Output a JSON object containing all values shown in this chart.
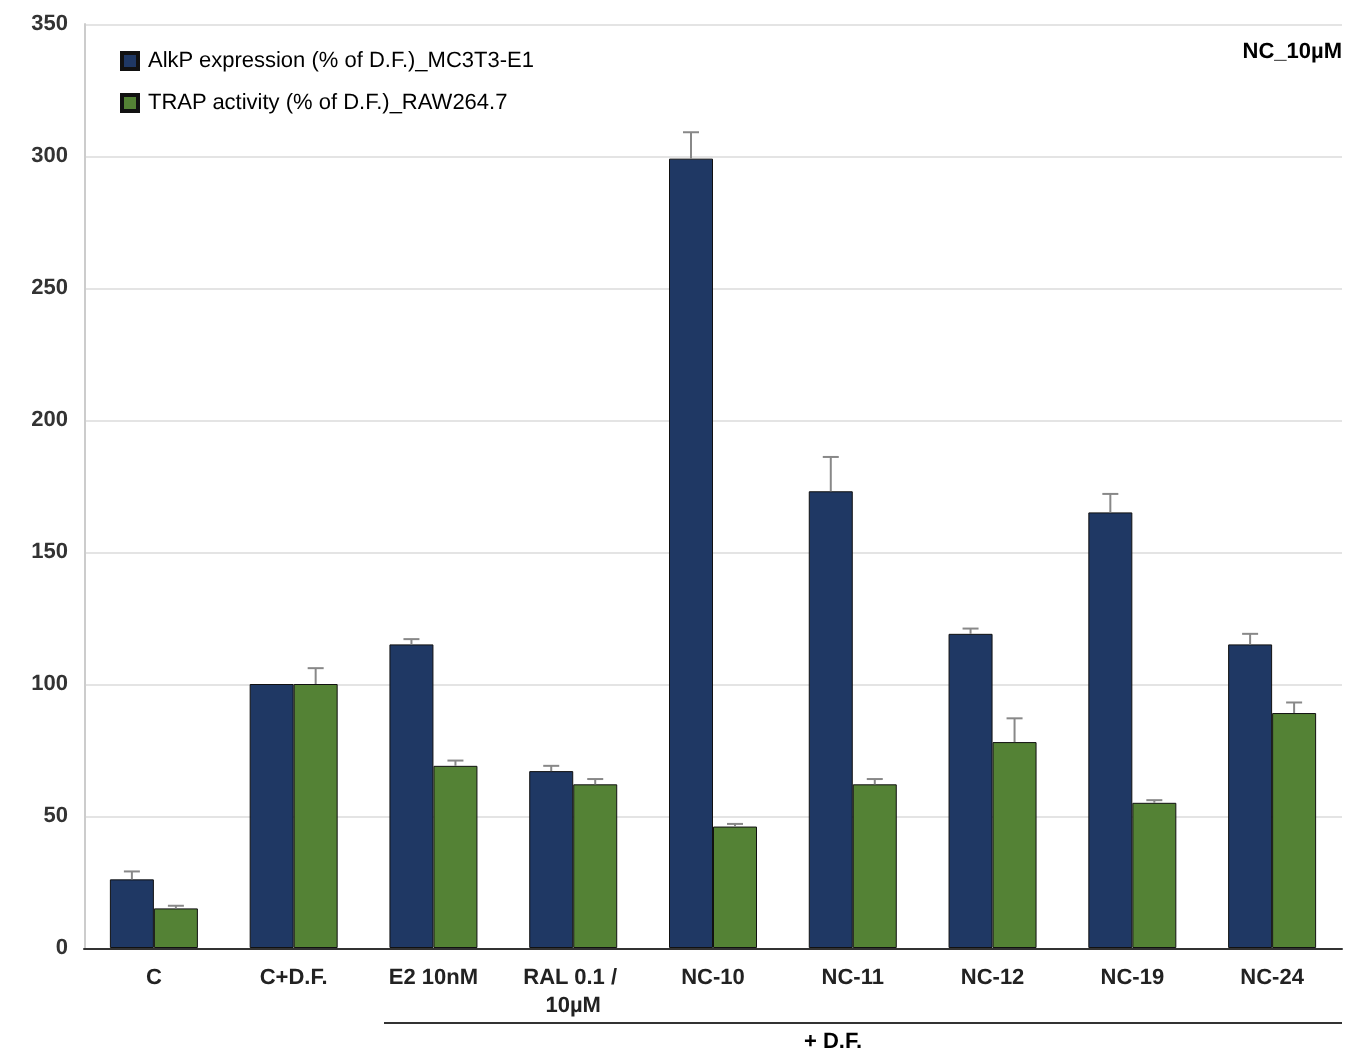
{
  "chart_data": {
    "type": "bar",
    "categories": [
      "C",
      "C+D.F.",
      "E2 10nM",
      "RAL 0.1 / 10µM",
      "NC-10",
      "NC-11",
      "NC-12",
      "NC-19",
      "NC-24"
    ],
    "series": [
      {
        "name": "AlkP expression (% of D.F.)_MC3T3-E1",
        "color": "#1f3864",
        "values": [
          26,
          100,
          115,
          67,
          299,
          173,
          119,
          165,
          115
        ],
        "errors": [
          [
            26,
            29
          ],
          null,
          [
            115,
            117
          ],
          [
            67,
            69
          ],
          [
            299,
            309
          ],
          [
            173,
            186
          ],
          [
            119,
            121
          ],
          [
            165,
            172
          ],
          [
            115,
            119
          ]
        ]
      },
      {
        "name": "TRAP activity (% of D.F.)_RAW264.7",
        "color": "#548235",
        "values": [
          15,
          100,
          69,
          62,
          46,
          62,
          78,
          55,
          89
        ],
        "errors": [
          [
            15,
            16
          ],
          [
            100,
            106
          ],
          [
            69,
            71
          ],
          [
            62,
            64
          ],
          [
            46,
            47
          ],
          [
            62,
            64
          ],
          [
            78,
            87
          ],
          [
            55,
            56
          ],
          [
            89,
            93
          ]
        ]
      }
    ],
    "ylim": [
      0,
      350
    ],
    "yticks": [
      0,
      50,
      100,
      150,
      200,
      250,
      300,
      350
    ],
    "grid": "y",
    "legend": "top left",
    "annotations": [
      "NC_10µM",
      "+ D.F."
    ]
  }
}
